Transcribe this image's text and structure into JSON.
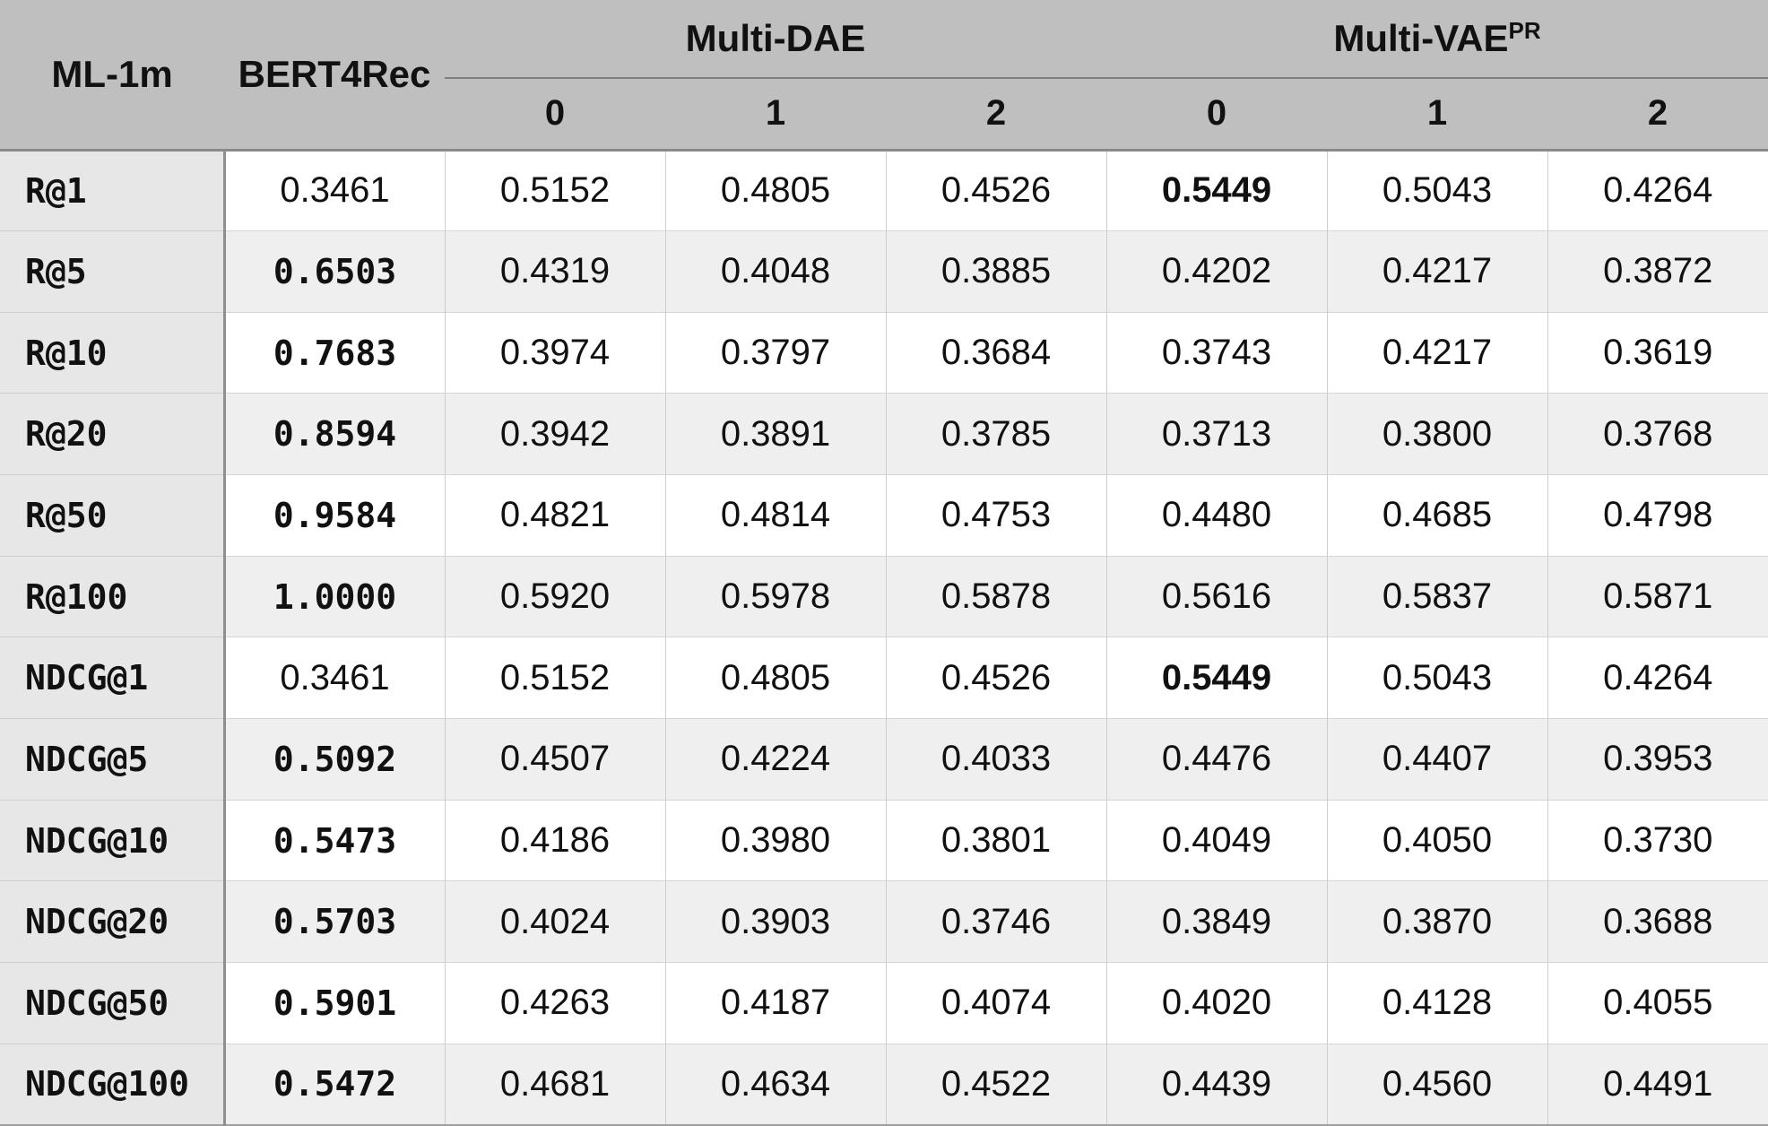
{
  "table": {
    "corner_label": "ML-1m",
    "baseline_col_label": "BERT4Rec",
    "groups": [
      {
        "label": "Multi-DAE",
        "sup": "",
        "subcols": [
          "0",
          "1",
          "2"
        ]
      },
      {
        "label": "Multi-VAE",
        "sup": "PR",
        "subcols": [
          "0",
          "1",
          "2"
        ]
      }
    ],
    "rows": [
      {
        "metric": "R@1",
        "values": [
          "0.3461",
          "0.5152",
          "0.4805",
          "0.4526",
          "0.5449",
          "0.5043",
          "0.4264"
        ],
        "bold": [
          4
        ]
      },
      {
        "metric": "R@5",
        "values": [
          "0.6503",
          "0.4319",
          "0.4048",
          "0.3885",
          "0.4202",
          "0.4217",
          "0.3872"
        ],
        "bold": [
          0
        ]
      },
      {
        "metric": "R@10",
        "values": [
          "0.7683",
          "0.3974",
          "0.3797",
          "0.3684",
          "0.3743",
          "0.4217",
          "0.3619"
        ],
        "bold": [
          0
        ]
      },
      {
        "metric": "R@20",
        "values": [
          "0.8594",
          "0.3942",
          "0.3891",
          "0.3785",
          "0.3713",
          "0.3800",
          "0.3768"
        ],
        "bold": [
          0
        ]
      },
      {
        "metric": "R@50",
        "values": [
          "0.9584",
          "0.4821",
          "0.4814",
          "0.4753",
          "0.4480",
          "0.4685",
          "0.4798"
        ],
        "bold": [
          0
        ]
      },
      {
        "metric": "R@100",
        "values": [
          "1.0000",
          "0.5920",
          "0.5978",
          "0.5878",
          "0.5616",
          "0.5837",
          "0.5871"
        ],
        "bold": [
          0
        ]
      },
      {
        "metric": "NDCG@1",
        "values": [
          "0.3461",
          "0.5152",
          "0.4805",
          "0.4526",
          "0.5449",
          "0.5043",
          "0.4264"
        ],
        "bold": [
          4
        ]
      },
      {
        "metric": "NDCG@5",
        "values": [
          "0.5092",
          "0.4507",
          "0.4224",
          "0.4033",
          "0.4476",
          "0.4407",
          "0.3953"
        ],
        "bold": [
          0
        ]
      },
      {
        "metric": "NDCG@10",
        "values": [
          "0.5473",
          "0.4186",
          "0.3980",
          "0.3801",
          "0.4049",
          "0.4050",
          "0.3730"
        ],
        "bold": [
          0
        ]
      },
      {
        "metric": "NDCG@20",
        "values": [
          "0.5703",
          "0.4024",
          "0.3903",
          "0.3746",
          "0.3849",
          "0.3870",
          "0.3688"
        ],
        "bold": [
          0
        ]
      },
      {
        "metric": "NDCG@50",
        "values": [
          "0.5901",
          "0.4263",
          "0.4187",
          "0.4074",
          "0.4020",
          "0.4128",
          "0.4055"
        ],
        "bold": [
          0
        ]
      },
      {
        "metric": "NDCG@100",
        "values": [
          "0.5472",
          "0.4681",
          "0.4634",
          "0.4522",
          "0.4439",
          "0.4560",
          "0.4491"
        ],
        "bold": [
          0
        ]
      }
    ]
  }
}
